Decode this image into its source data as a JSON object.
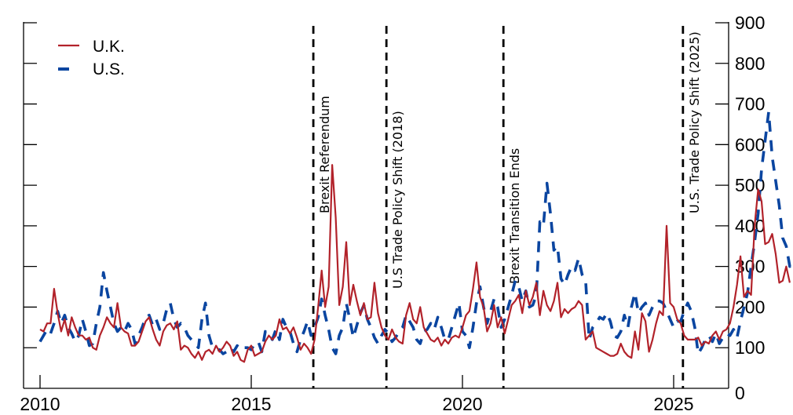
{
  "chart_data": {
    "type": "line",
    "title": "",
    "xlabel": "",
    "ylabel": "",
    "x_range": [
      2009.85,
      2026.25
    ],
    "ylim": [
      0,
      900
    ],
    "y_axis_side": "right",
    "y_ticks": [
      0,
      100,
      200,
      300,
      400,
      500,
      600,
      700,
      800,
      900
    ],
    "x_ticks": [
      2010,
      2015,
      2020,
      2025
    ],
    "grid": false,
    "legend_position": "upper left",
    "x_start": 2010.0,
    "x_step": 0.08333,
    "series": [
      {
        "name": "U.K.",
        "color": "#B2222A",
        "style": "solid",
        "values": [
          145,
          140,
          160,
          160,
          245,
          185,
          140,
          170,
          130,
          175,
          150,
          130,
          130,
          120,
          125,
          100,
          95,
          130,
          150,
          175,
          160,
          150,
          210,
          150,
          140,
          135,
          105,
          105,
          115,
          140,
          165,
          175,
          145,
          120,
          105,
          140,
          155,
          160,
          145,
          165,
          95,
          105,
          100,
          85,
          75,
          90,
          70,
          90,
          95,
          85,
          105,
          90,
          100,
          115,
          105,
          80,
          90,
          70,
          65,
          95,
          105,
          80,
          85,
          90,
          115,
          130,
          120,
          130,
          170,
          145,
          150,
          135,
          150,
          125,
          95,
          110,
          100,
          85,
          120,
          200,
          290,
          200,
          250,
          550,
          420,
          205,
          250,
          360,
          205,
          255,
          215,
          180,
          210,
          170,
          175,
          260,
          185,
          150,
          130,
          120,
          145,
          125,
          115,
          110,
          180,
          210,
          170,
          160,
          200,
          150,
          135,
          120,
          115,
          125,
          105,
          120,
          110,
          125,
          130,
          125,
          150,
          180,
          190,
          245,
          310,
          225,
          200,
          140,
          160,
          205,
          150,
          175,
          135,
          170,
          205,
          215,
          230,
          185,
          240,
          205,
          225,
          260,
          180,
          240,
          205,
          190,
          215,
          260,
          175,
          195,
          185,
          195,
          200,
          215,
          205,
          120,
          130,
          140,
          100,
          95,
          90,
          85,
          80,
          80,
          85,
          110,
          90,
          80,
          75,
          140,
          95,
          185,
          165,
          90,
          120,
          160,
          190,
          180,
          400,
          210,
          200,
          170,
          160,
          130,
          120,
          120,
          120,
          125,
          105,
          115,
          110,
          130,
          140,
          120,
          140,
          145,
          160,
          200,
          255,
          325,
          225,
          240,
          230,
          400,
          490,
          460,
          355,
          360,
          380,
          330,
          260,
          265,
          300,
          260
        ]
      },
      {
        "name": "U.S.",
        "color": "#0A45A0",
        "style": "dashed",
        "values": [
          115,
          130,
          145,
          135,
          160,
          190,
          160,
          180,
          150,
          135,
          115,
          130,
          170,
          140,
          105,
          110,
          160,
          200,
          285,
          240,
          200,
          160,
          140,
          150,
          140,
          160,
          145,
          110,
          130,
          150,
          175,
          180,
          155,
          170,
          145,
          160,
          195,
          210,
          170,
          150,
          160,
          150,
          130,
          120,
          110,
          100,
          170,
          210,
          130,
          100,
          95,
          95,
          85,
          90,
          100,
          90,
          105,
          95,
          100,
          100,
          95,
          110,
          115,
          90,
          140,
          130,
          120,
          145,
          120,
          170,
          150,
          140,
          110,
          90,
          120,
          140,
          165,
          130,
          150,
          175,
          220,
          180,
          145,
          100,
          85,
          130,
          150,
          210,
          170,
          125,
          155,
          185,
          205,
          170,
          150,
          125,
          110,
          130,
          145,
          135,
          115,
          125,
          140,
          150,
          180,
          165,
          150,
          120,
          110,
          140,
          145,
          160,
          145,
          175,
          150,
          120,
          120,
          150,
          180,
          210,
          140,
          130,
          100,
          150,
          210,
          250,
          200,
          160,
          190,
          220,
          200,
          150,
          170,
          200,
          230,
          265,
          250,
          215,
          240,
          200,
          205,
          230,
          410,
          400,
          505,
          430,
          340,
          350,
          270,
          255,
          280,
          300,
          290,
          320,
          280,
          265,
          120,
          150,
          160,
          175,
          170,
          185,
          165,
          130,
          125,
          140,
          180,
          150,
          200,
          235,
          185,
          200,
          210,
          180,
          200,
          215,
          215,
          210,
          190,
          170,
          150,
          165,
          165,
          190,
          210,
          190,
          150,
          85,
          100,
          120,
          130,
          115,
          135,
          110,
          125,
          135,
          130,
          145,
          125,
          165,
          200,
          235,
          300,
          360,
          430,
          540,
          610,
          680,
          570,
          510,
          450,
          370,
          350,
          300,
          310,
          320
        ]
      }
    ],
    "annotations": [
      {
        "x": 2016.47,
        "label": "Brexit Referendum",
        "style": "dashed-vertical"
      },
      {
        "x": 2018.2,
        "label": "U.S Trade Policy Shift (2018)",
        "style": "dashed-vertical"
      },
      {
        "x": 2020.97,
        "label": "Brexit Transition Ends",
        "style": "dashed-vertical"
      },
      {
        "x": 2025.22,
        "label": "U.S. Trade Policy Shift (2025)",
        "style": "dashed-vertical"
      }
    ]
  },
  "legend": {
    "items": [
      {
        "label": "U.K.",
        "color": "#B2222A",
        "style": "solid"
      },
      {
        "label": "U.S.",
        "color": "#0A45A0",
        "style": "dashed"
      }
    ]
  },
  "axes": {
    "x_tick_labels": [
      "2010",
      "2015",
      "2020",
      "2025"
    ],
    "y_tick_labels": [
      "0",
      "100",
      "200",
      "300",
      "400",
      "500",
      "600",
      "700",
      "800",
      "900"
    ]
  }
}
